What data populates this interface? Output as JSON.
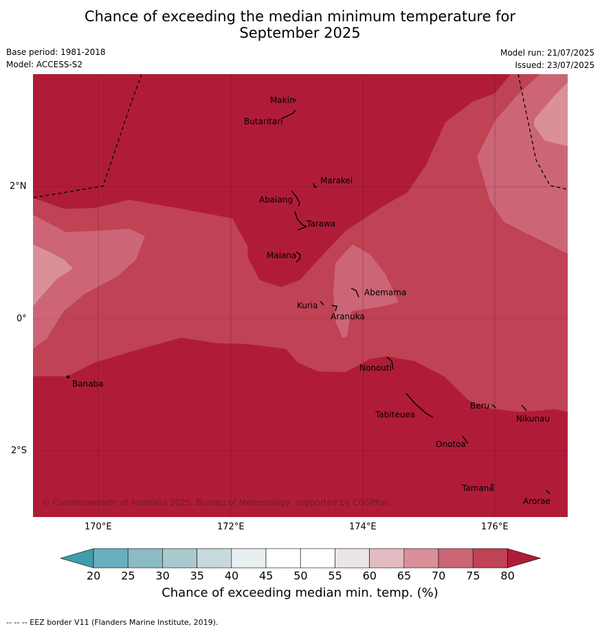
{
  "title_line1": "Chance of exceeding the median minimum temperature for",
  "title_line2": "September 2025",
  "base_period": "Base period: 1981-2018",
  "model": "Model: ACCESS-S2",
  "model_run": "Model run: 21/07/2025",
  "issued": "Issued: 23/07/2025",
  "copyright": "© Commonwealth of Australia 2025, Bureau of Meteorology, supported by COSPPac",
  "lat_labels": [
    "2°N",
    "0°",
    "2°S"
  ],
  "lon_labels": [
    "170°E",
    "172°E",
    "174°E",
    "176°E"
  ],
  "islands": [
    "Makin",
    "Butaritari",
    "Marakei",
    "Abaiang",
    "Tarawa",
    "Maiana",
    "Abemama",
    "Kuria",
    "Aranuka",
    "Nonouti",
    "Banaba",
    "Tabiteuea",
    "Beru",
    "Nikunau",
    "Onotoa",
    "Tamana",
    "Arorae"
  ],
  "colorbar": {
    "ticks": [
      "20",
      "25",
      "30",
      "35",
      "40",
      "45",
      "50",
      "55",
      "60",
      "65",
      "70",
      "75",
      "80"
    ],
    "colors": [
      "#6aafbd",
      "#8bbcc6",
      "#aac9ce",
      "#c8d9dc",
      "#e8eff0",
      "#ffffff",
      "#ffffff",
      "#ebe6e6",
      "#e2bcc2",
      "#d99099",
      "#cc6677",
      "#bf4255"
    ],
    "low_color": "#3f9eab",
    "high_color": "#b01c38",
    "label": "Chance of exceeding median min. temp. (%)"
  },
  "footnote": "-- -- -- EEZ border V11 (Flanders Marine Institute, 2019)."
}
